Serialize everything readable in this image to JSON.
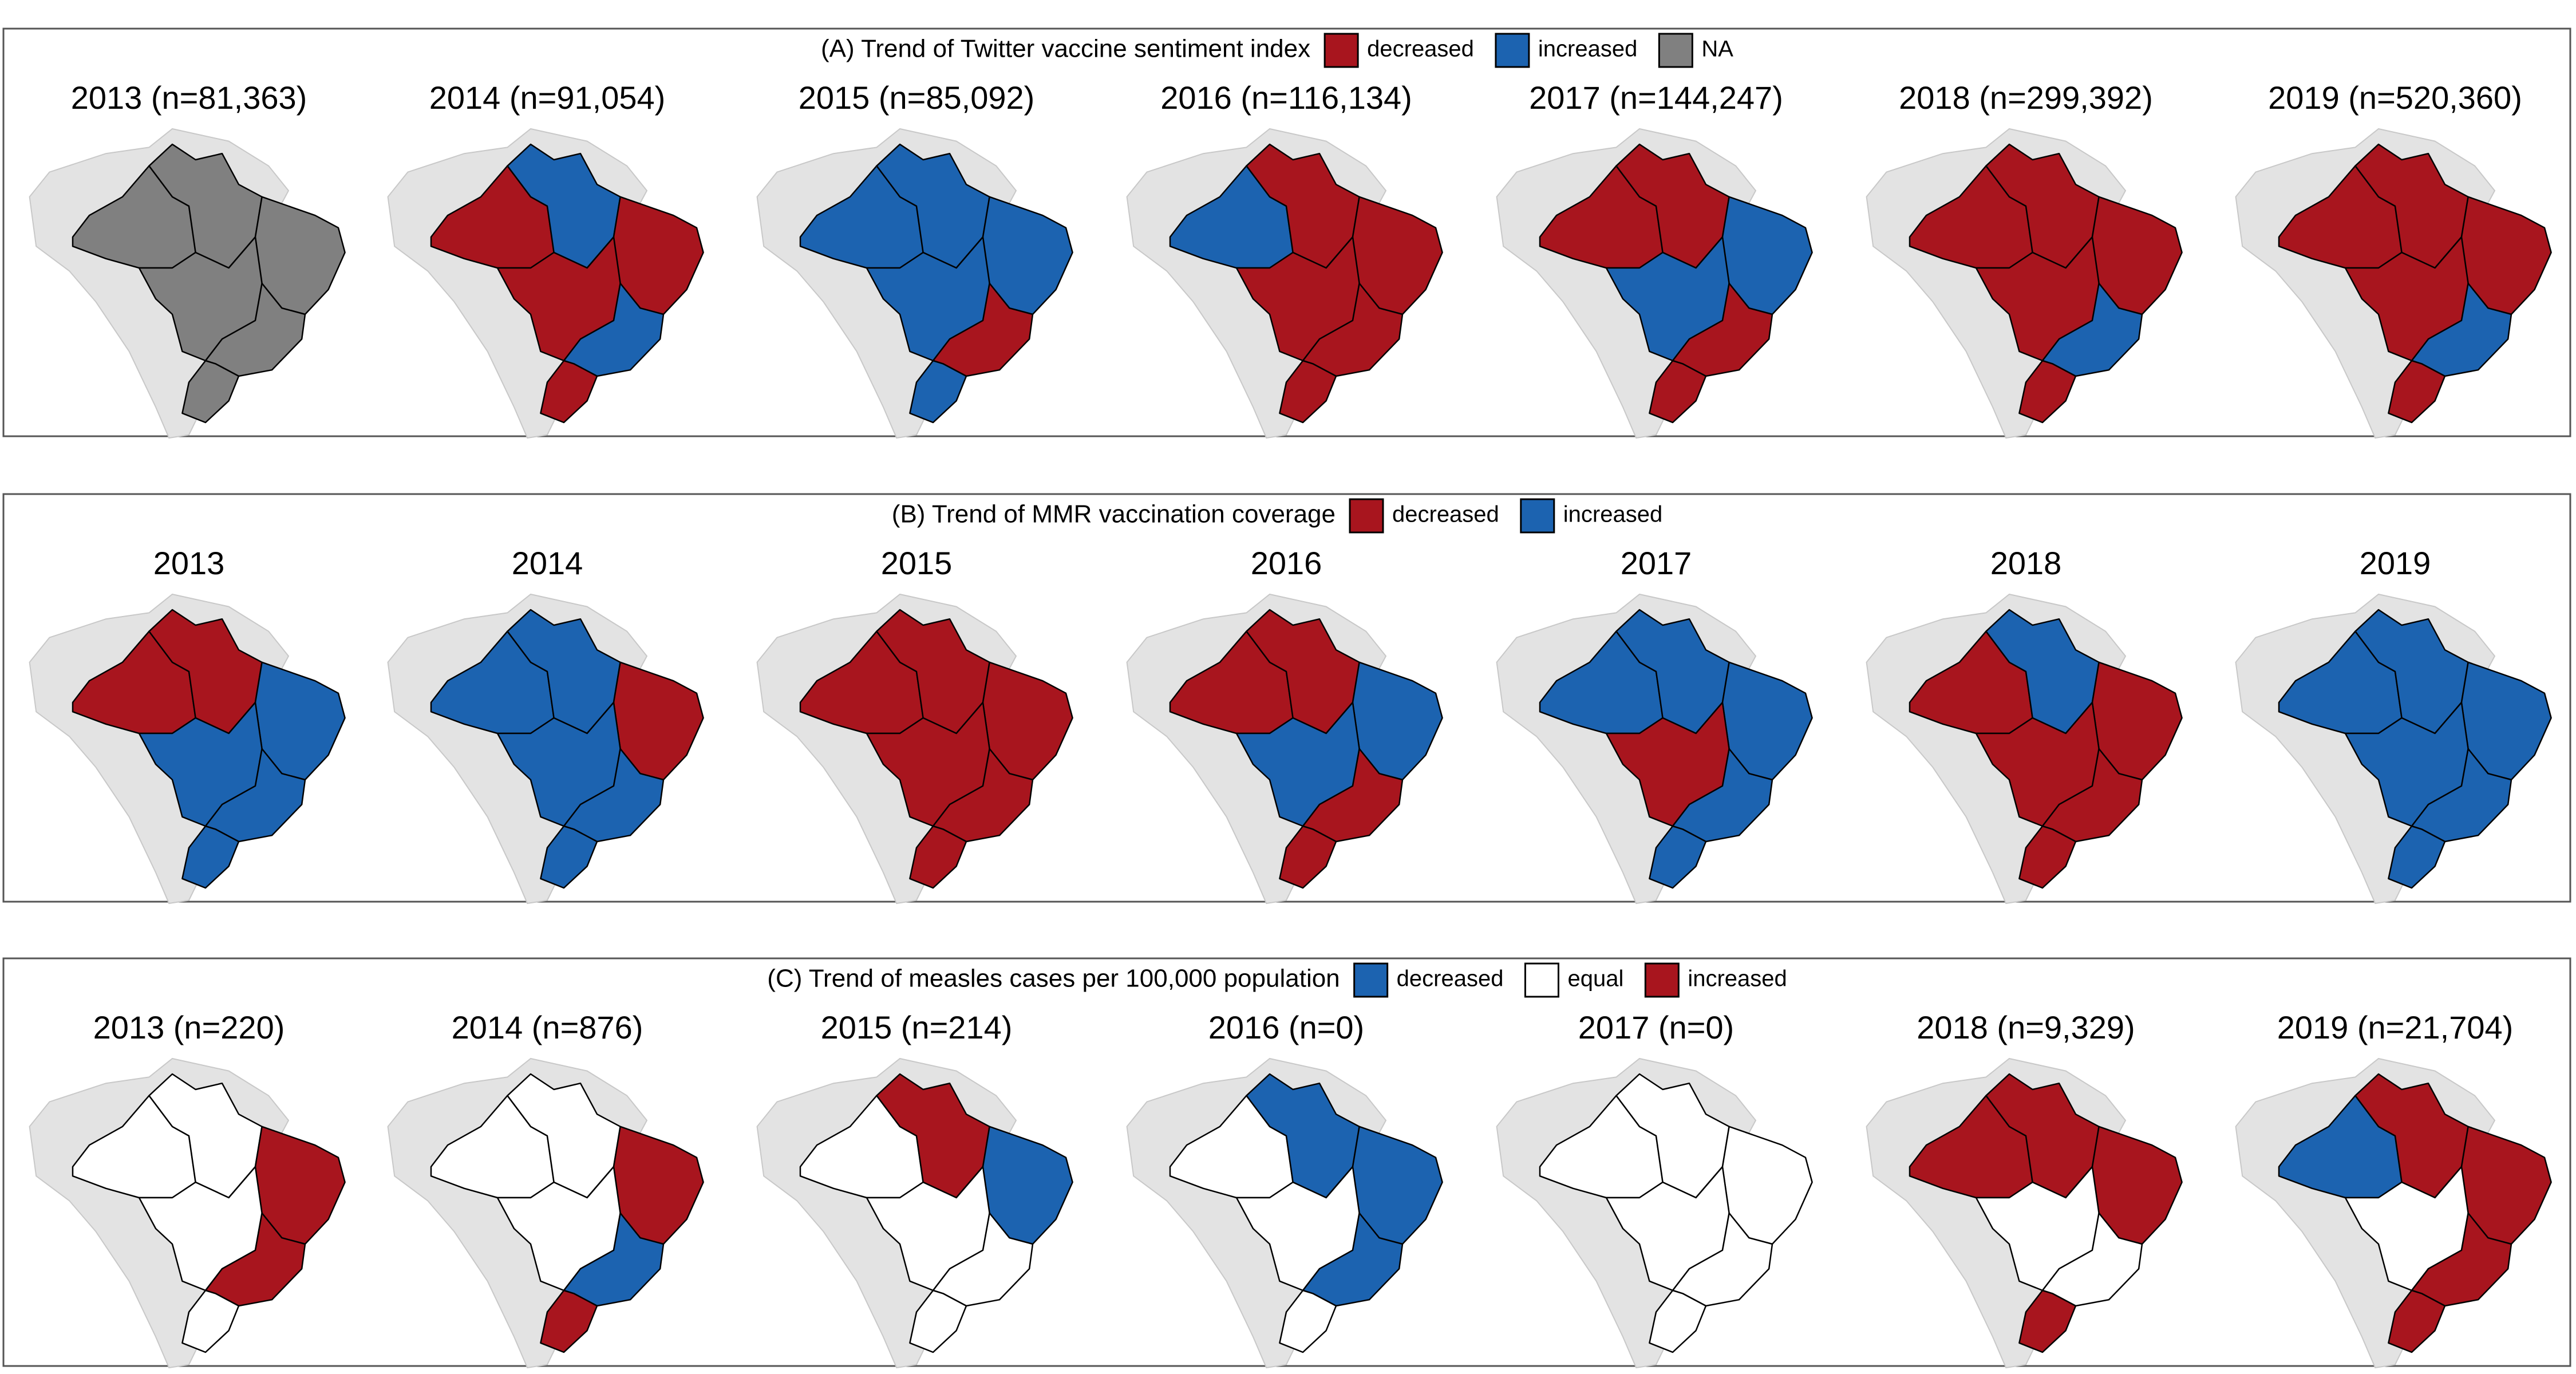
{
  "panels": [
    {
      "title": "(A) Trend of Twitter vaccine sentiment index",
      "legend": [
        {
          "label": "decreased",
          "color": "#a8151e"
        },
        {
          "label": "increased",
          "color": "#1c63b0"
        },
        {
          "label": "NA",
          "color": "#808080"
        }
      ],
      "maps": [
        {
          "label": "2013 (n=81,363)",
          "fills": [
            "#808080",
            "#808080",
            "#808080",
            "#808080",
            "#808080",
            "#808080"
          ]
        },
        {
          "label": "2014 (n=91,054)",
          "fills": [
            "#a8151e",
            "#1c63b0",
            "#a8151e",
            "#a8151e",
            "#1c63b0",
            "#a8151e"
          ]
        },
        {
          "label": "2015 (n=85,092)",
          "fills": [
            "#1c63b0",
            "#1c63b0",
            "#1c63b0",
            "#1c63b0",
            "#a8151e",
            "#1c63b0"
          ]
        },
        {
          "label": "2016 (n=116,134)",
          "fills": [
            "#1c63b0",
            "#a8151e",
            "#a8151e",
            "#a8151e",
            "#a8151e",
            "#a8151e"
          ]
        },
        {
          "label": "2017 (n=144,247)",
          "fills": [
            "#a8151e",
            "#a8151e",
            "#1c63b0",
            "#1c63b0",
            "#a8151e",
            "#a8151e"
          ]
        },
        {
          "label": "2018 (n=299,392)",
          "fills": [
            "#a8151e",
            "#a8151e",
            "#a8151e",
            "#a8151e",
            "#1c63b0",
            "#a8151e"
          ]
        },
        {
          "label": "2019 (n=520,360)",
          "fills": [
            "#a8151e",
            "#a8151e",
            "#a8151e",
            "#a8151e",
            "#1c63b0",
            "#a8151e"
          ]
        }
      ]
    },
    {
      "title": "(B) Trend of MMR vaccination coverage",
      "legend": [
        {
          "label": "decreased",
          "color": "#a8151e"
        },
        {
          "label": "increased",
          "color": "#1c63b0"
        }
      ],
      "maps": [
        {
          "label": "2013",
          "fills": [
            "#a8151e",
            "#a8151e",
            "#1c63b0",
            "#1c63b0",
            "#1c63b0",
            "#1c63b0"
          ]
        },
        {
          "label": "2014",
          "fills": [
            "#1c63b0",
            "#1c63b0",
            "#a8151e",
            "#1c63b0",
            "#1c63b0",
            "#1c63b0"
          ]
        },
        {
          "label": "2015",
          "fills": [
            "#a8151e",
            "#a8151e",
            "#a8151e",
            "#a8151e",
            "#a8151e",
            "#a8151e"
          ]
        },
        {
          "label": "2016",
          "fills": [
            "#a8151e",
            "#a8151e",
            "#1c63b0",
            "#1c63b0",
            "#a8151e",
            "#a8151e"
          ]
        },
        {
          "label": "2017",
          "fills": [
            "#1c63b0",
            "#1c63b0",
            "#1c63b0",
            "#a8151e",
            "#1c63b0",
            "#1c63b0"
          ]
        },
        {
          "label": "2018",
          "fills": [
            "#a8151e",
            "#1c63b0",
            "#a8151e",
            "#a8151e",
            "#a8151e",
            "#a8151e"
          ]
        },
        {
          "label": "2019",
          "fills": [
            "#1c63b0",
            "#1c63b0",
            "#1c63b0",
            "#1c63b0",
            "#1c63b0",
            "#1c63b0"
          ]
        }
      ]
    },
    {
      "title": "(C) Trend of measles cases per 100,000 population",
      "legend": [
        {
          "label": "decreased",
          "color": "#1c63b0"
        },
        {
          "label": "equal",
          "color": "#ffffff"
        },
        {
          "label": "increased",
          "color": "#a8151e"
        }
      ],
      "maps": [
        {
          "label": "2013 (n=220)",
          "fills": [
            "#ffffff",
            "#ffffff",
            "#a8151e",
            "#ffffff",
            "#a8151e",
            "#ffffff"
          ]
        },
        {
          "label": "2014 (n=876)",
          "fills": [
            "#ffffff",
            "#ffffff",
            "#a8151e",
            "#ffffff",
            "#1c63b0",
            "#a8151e"
          ]
        },
        {
          "label": "2015 (n=214)",
          "fills": [
            "#ffffff",
            "#a8151e",
            "#1c63b0",
            "#ffffff",
            "#ffffff",
            "#ffffff"
          ]
        },
        {
          "label": "2016 (n=0)",
          "fills": [
            "#ffffff",
            "#1c63b0",
            "#1c63b0",
            "#ffffff",
            "#1c63b0",
            "#ffffff"
          ]
        },
        {
          "label": "2017 (n=0)",
          "fills": [
            "#ffffff",
            "#ffffff",
            "#ffffff",
            "#ffffff",
            "#ffffff",
            "#ffffff"
          ]
        },
        {
          "label": "2018 (n=9,329)",
          "fills": [
            "#a8151e",
            "#a8151e",
            "#a8151e",
            "#ffffff",
            "#ffffff",
            "#a8151e"
          ]
        },
        {
          "label": "2019 (n=21,704)",
          "fills": [
            "#1c63b0",
            "#a8151e",
            "#a8151e",
            "#ffffff",
            "#a8151e",
            "#a8151e"
          ]
        }
      ]
    }
  ]
}
